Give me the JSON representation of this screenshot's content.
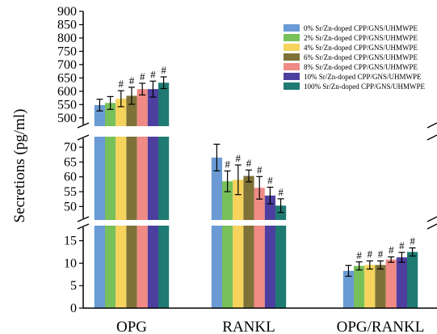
{
  "chart_data": {
    "type": "bar",
    "ylabel": "Secretions (pg/ml)",
    "categories": [
      "OPG",
      "RANKL",
      "OPG/RANKL"
    ],
    "axis_break": true,
    "y_segments": [
      {
        "range": [
          475,
          900
        ],
        "ticks": [
          500,
          550,
          600,
          650,
          700,
          750,
          800,
          850,
          900
        ]
      },
      {
        "range": [
          46,
          73
        ],
        "ticks": [
          50,
          55,
          60,
          65,
          70
        ]
      },
      {
        "range": [
          0,
          18
        ],
        "ticks": [
          0,
          5,
          10,
          15
        ]
      }
    ],
    "legend_position": "top-right",
    "series": [
      {
        "name": "0%   Sr/Zn-doped CPP/GNS/UHMWPE",
        "color": "#6a9bd5",
        "values": [
          548,
          66.5,
          8.3
        ],
        "errors": [
          22,
          4.5,
          1.2
        ],
        "significance": [
          "",
          "",
          ""
        ]
      },
      {
        "name": "2%   Sr/Zn-doped CPP/GNS/UHMWPE",
        "color": "#78c05a",
        "values": [
          556,
          58.5,
          9.4
        ],
        "errors": [
          24,
          3.5,
          0.9
        ],
        "significance": [
          "",
          "#",
          "#"
        ]
      },
      {
        "name": "4%   Sr/Zn-doped CPP/GNS/UHMWPE",
        "color": "#f5d35c",
        "values": [
          572,
          59,
          9.6
        ],
        "errors": [
          30,
          5,
          0.9
        ],
        "significance": [
          "#",
          "#",
          "#"
        ]
      },
      {
        "name": "6%   Sr/Zn-doped CPP/GNS/UHMWPE",
        "color": "#7f7238",
        "values": [
          583,
          60.3,
          9.6
        ],
        "errors": [
          32,
          2,
          0.9
        ],
        "significance": [
          "#",
          "#",
          "#"
        ]
      },
      {
        "name": "8%   Sr/Zn-doped CPP/GNS/UHMWPE",
        "color": "#f08a85",
        "values": [
          608,
          56.3,
          10.8
        ],
        "errors": [
          22,
          3.8,
          0.6
        ],
        "significance": [
          "#",
          "#",
          "#"
        ]
      },
      {
        "name": "10%  Sr/Zn-doped CPP/GNS/UHMWPE",
        "color": "#4d3fa0",
        "values": [
          608,
          53.7,
          11.3
        ],
        "errors": [
          30,
          2.8,
          1.1
        ],
        "significance": [
          "#",
          "#",
          "#"
        ]
      },
      {
        "name": "100% Sr/Zn-doped CPP/GNS/UHMWPE",
        "color": "#1f7a73",
        "values": [
          632,
          50.3,
          12.5
        ],
        "errors": [
          22,
          2.3,
          0.9
        ],
        "significance": [
          "#",
          "#",
          "#"
        ]
      }
    ]
  }
}
